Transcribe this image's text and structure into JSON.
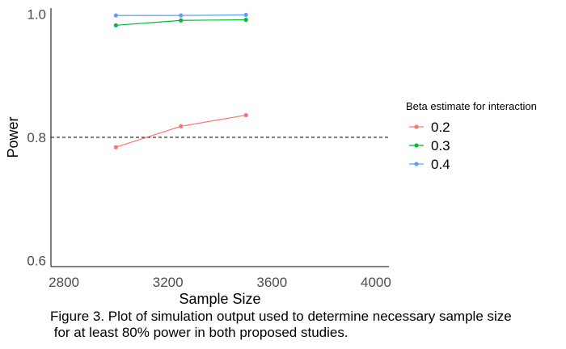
{
  "chart_data": {
    "type": "line",
    "xlabel": "Sample Size",
    "ylabel": "Power",
    "xlim": [
      2750,
      4050
    ],
    "ylim": [
      0.59,
      1.01
    ],
    "x_ticks": [
      2800,
      3200,
      3600,
      4000
    ],
    "x_tick_labels": [
      "2800",
      "3200",
      "3600",
      "4000"
    ],
    "y_ticks": [
      0.6,
      0.8,
      1.0
    ],
    "y_tick_labels": [
      "0.6",
      "0.8",
      "1.0"
    ],
    "grid": false,
    "reference_line": {
      "y": 0.8,
      "style": "dashed"
    },
    "legend": {
      "title": "Beta estimate for interaction",
      "position": "right"
    },
    "x": [
      3000,
      3250,
      3500
    ],
    "series": [
      {
        "name": "0.2",
        "color": "#F8766D",
        "values": [
          0.784,
          0.818,
          0.836
        ]
      },
      {
        "name": "0.3",
        "color": "#00BA38",
        "values": [
          0.982,
          0.99,
          0.991
        ]
      },
      {
        "name": "0.4",
        "color": "#619CFF",
        "values": [
          0.998,
          0.998,
          0.999
        ]
      }
    ]
  },
  "caption": {
    "line1": "Figure 3. Plot of simulation output used to determine necessary sample size",
    "line2": " for at least 80% power in both proposed studies."
  }
}
